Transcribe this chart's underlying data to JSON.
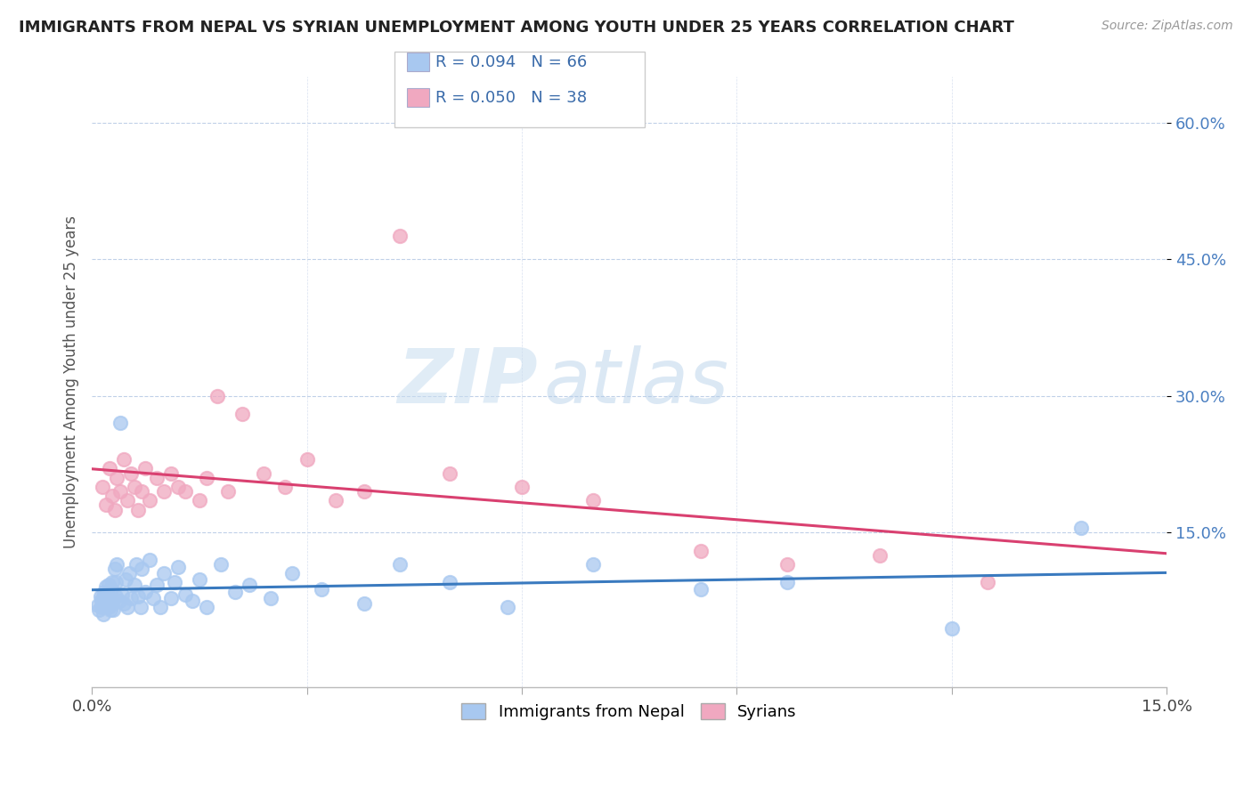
{
  "title": "IMMIGRANTS FROM NEPAL VS SYRIAN UNEMPLOYMENT AMONG YOUTH UNDER 25 YEARS CORRELATION CHART",
  "source": "Source: ZipAtlas.com",
  "ylabel": "Unemployment Among Youth under 25 years",
  "legend_labels": [
    "Immigrants from Nepal",
    "Syrians"
  ],
  "legend_r": [
    0.094,
    0.05
  ],
  "legend_n": [
    66,
    38
  ],
  "xlim": [
    0.0,
    0.15
  ],
  "ylim": [
    -0.02,
    0.65
  ],
  "right_yticks": [
    0.6,
    0.45,
    0.3,
    0.15
  ],
  "right_yticklabels": [
    "60.0%",
    "45.0%",
    "30.0%",
    "15.0%"
  ],
  "color_blue": "#a8c8f0",
  "color_pink": "#f0a8c0",
  "trendline_blue": "#3a7abf",
  "trendline_pink": "#d94070",
  "watermark_zip": "ZIP",
  "watermark_atlas": "atlas",
  "nepal_x": [
    0.0008,
    0.001,
    0.0012,
    0.0013,
    0.0014,
    0.0015,
    0.0015,
    0.0016,
    0.0017,
    0.0018,
    0.002,
    0.0021,
    0.0022,
    0.0023,
    0.0024,
    0.0025,
    0.0026,
    0.0027,
    0.0028,
    0.0029,
    0.003,
    0.0032,
    0.0033,
    0.0034,
    0.0035,
    0.0038,
    0.004,
    0.0042,
    0.0045,
    0.0047,
    0.005,
    0.0052,
    0.0055,
    0.006,
    0.0062,
    0.0065,
    0.0068,
    0.007,
    0.0075,
    0.008,
    0.0085,
    0.009,
    0.0095,
    0.01,
    0.011,
    0.0115,
    0.012,
    0.013,
    0.014,
    0.015,
    0.016,
    0.018,
    0.02,
    0.022,
    0.025,
    0.028,
    0.032,
    0.038,
    0.043,
    0.05,
    0.058,
    0.07,
    0.085,
    0.097,
    0.12,
    0.138
  ],
  "nepal_y": [
    0.07,
    0.065,
    0.08,
    0.075,
    0.068,
    0.072,
    0.078,
    0.06,
    0.085,
    0.07,
    0.09,
    0.075,
    0.082,
    0.068,
    0.092,
    0.078,
    0.065,
    0.088,
    0.072,
    0.095,
    0.065,
    0.11,
    0.08,
    0.095,
    0.115,
    0.075,
    0.27,
    0.082,
    0.072,
    0.098,
    0.068,
    0.105,
    0.078,
    0.092,
    0.115,
    0.08,
    0.068,
    0.11,
    0.085,
    0.12,
    0.078,
    0.092,
    0.068,
    0.105,
    0.078,
    0.095,
    0.112,
    0.082,
    0.075,
    0.098,
    0.068,
    0.115,
    0.085,
    0.092,
    0.078,
    0.105,
    0.088,
    0.072,
    0.115,
    0.095,
    0.068,
    0.115,
    0.088,
    0.095,
    0.045,
    0.155
  ],
  "syrian_x": [
    0.0015,
    0.002,
    0.0025,
    0.0028,
    0.0032,
    0.0035,
    0.004,
    0.0045,
    0.005,
    0.0055,
    0.006,
    0.0065,
    0.007,
    0.0075,
    0.008,
    0.009,
    0.01,
    0.011,
    0.012,
    0.013,
    0.015,
    0.016,
    0.0175,
    0.019,
    0.021,
    0.024,
    0.027,
    0.03,
    0.034,
    0.038,
    0.043,
    0.05,
    0.06,
    0.07,
    0.085,
    0.097,
    0.11,
    0.125
  ],
  "syrian_y": [
    0.2,
    0.18,
    0.22,
    0.19,
    0.175,
    0.21,
    0.195,
    0.23,
    0.185,
    0.215,
    0.2,
    0.175,
    0.195,
    0.22,
    0.185,
    0.21,
    0.195,
    0.215,
    0.2,
    0.195,
    0.185,
    0.21,
    0.3,
    0.195,
    0.28,
    0.215,
    0.2,
    0.23,
    0.185,
    0.195,
    0.475,
    0.215,
    0.2,
    0.185,
    0.13,
    0.115,
    0.125,
    0.095
  ]
}
